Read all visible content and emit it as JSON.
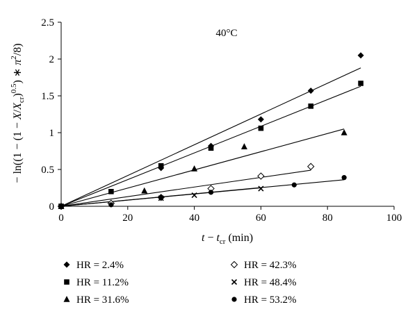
{
  "chart_data": {
    "type": "scatter",
    "annotation": "40°C",
    "xlabel_parts": [
      "t",
      " − ",
      "t",
      "cr",
      " (min)"
    ],
    "ylabel_parts": [
      "− ln((1 − (1 − ",
      "X",
      "/",
      "X",
      "cr",
      ")",
      "0.5",
      ") ∗ ",
      "π",
      "2",
      "/8)"
    ],
    "xlim": [
      0,
      100
    ],
    "ylim": [
      0,
      2.5
    ],
    "xticks": [
      0,
      20,
      40,
      60,
      80,
      100
    ],
    "yticks": [
      0,
      0.5,
      1,
      1.5,
      2,
      2.5
    ],
    "xtick_labels": [
      "0",
      "20",
      "40",
      "60",
      "80",
      "100"
    ],
    "ytick_labels": [
      "0",
      "0.5",
      "1",
      "1.5",
      "2",
      "2.5"
    ],
    "grid": false,
    "legend_position": "bottom",
    "series": [
      {
        "name": "HR = 2.4%",
        "marker": "diamond",
        "x": [
          0,
          30,
          45,
          60,
          75,
          90
        ],
        "y": [
          0,
          0.52,
          0.82,
          1.18,
          1.57,
          2.05
        ],
        "fit": {
          "x": [
            0,
            90
          ],
          "y": [
            0,
            1.88
          ]
        }
      },
      {
        "name": "HR = 11.2%",
        "marker": "square",
        "x": [
          0,
          15,
          30,
          45,
          60,
          75,
          90
        ],
        "y": [
          0,
          0.2,
          0.55,
          0.79,
          1.06,
          1.36,
          1.67
        ],
        "fit": {
          "x": [
            0,
            90
          ],
          "y": [
            0,
            1.63
          ]
        }
      },
      {
        "name": "HR = 31.6%",
        "marker": "triangle",
        "x": [
          0,
          25,
          40,
          55,
          85
        ],
        "y": [
          0,
          0.21,
          0.51,
          0.81,
          1.0
        ],
        "fit": {
          "x": [
            0,
            85
          ],
          "y": [
            0,
            1.05
          ]
        }
      },
      {
        "name": "HR = 42.3%",
        "marker": "open-diamond",
        "x": [
          0,
          15,
          30,
          45,
          60,
          75
        ],
        "y": [
          0,
          0.04,
          0.12,
          0.24,
          0.41,
          0.54
        ],
        "fit": {
          "x": [
            0,
            75
          ],
          "y": [
            0,
            0.49
          ]
        }
      },
      {
        "name": "HR = 48.4%",
        "marker": "x",
        "x": [
          0,
          30,
          40,
          60
        ],
        "y": [
          0,
          0.11,
          0.15,
          0.24
        ],
        "fit": {
          "x": [
            0,
            60
          ],
          "y": [
            0,
            0.25
          ]
        }
      },
      {
        "name": "HR = 53.2%",
        "marker": "circle",
        "x": [
          0,
          15,
          30,
          45,
          70,
          85
        ],
        "y": [
          0,
          0.02,
          0.12,
          0.19,
          0.29,
          0.39
        ],
        "fit": {
          "x": [
            0,
            85
          ],
          "y": [
            0,
            0.36
          ]
        }
      }
    ]
  }
}
